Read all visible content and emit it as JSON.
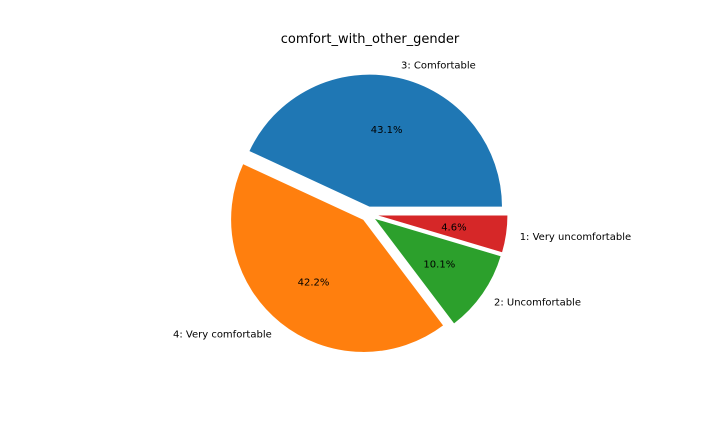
{
  "chart_data": {
    "type": "pie",
    "title": "comfort_with_other_gender",
    "categories": [
      "3: Comfortable",
      "4: Very comfortable",
      "2: Uncomfortable",
      "1: Very uncomfortable"
    ],
    "values": [
      43.1,
      42.2,
      10.1,
      4.6
    ],
    "value_labels": [
      "43.1%",
      "42.2%",
      "10.1%",
      "4.6%"
    ],
    "colors": [
      "#1f77b4",
      "#ff7f0e",
      "#2ca02c",
      "#d62728"
    ],
    "start_angle_deg": 0,
    "direction": "counterclockwise",
    "exploded": true
  }
}
